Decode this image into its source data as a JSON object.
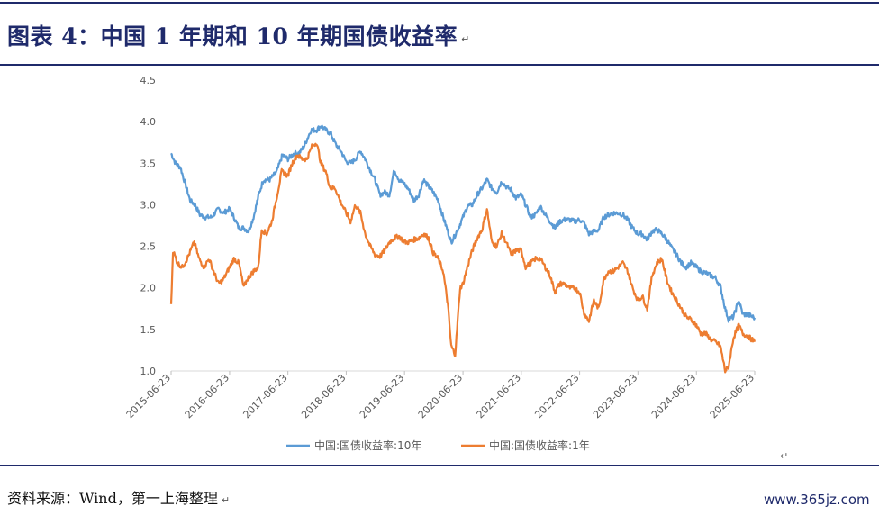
{
  "header": {
    "title": "图表 4：中国 1 年期和 10 年期国债收益率",
    "para_mark": "↵"
  },
  "footer": {
    "source": "资料来源：Wind，第一上海整理",
    "source_mark": "↵",
    "note_mark": "↵",
    "watermark": "www.365jz.com"
  },
  "colors": {
    "rule": "#1f2a6b",
    "series_10y": "#5b9bd5",
    "series_1y": "#ed7d31"
  },
  "chart_data": {
    "type": "line",
    "ylim": [
      1.0,
      4.5
    ],
    "yticks": [
      "1.0",
      "1.5",
      "2.0",
      "2.5",
      "3.0",
      "3.5",
      "4.0",
      "4.5"
    ],
    "xlim": [
      "2015-06-23",
      "2025-06-23"
    ],
    "xticks": [
      "2015-06-23",
      "2016-06-23",
      "2017-06-23",
      "2018-06-23",
      "2019-06-23",
      "2020-06-23",
      "2021-06-23",
      "2022-06-23",
      "2023-06-23",
      "2024-06-23",
      "2025-06-23"
    ],
    "legend_position": "bottom",
    "series": [
      {
        "name": "中国:国债收益率:10年",
        "color": "#5b9bd5",
        "points": [
          [
            "2015-06-23",
            3.62
          ],
          [
            "2015-07-20",
            3.5
          ],
          [
            "2015-08-20",
            3.45
          ],
          [
            "2015-09-20",
            3.25
          ],
          [
            "2015-10-20",
            3.05
          ],
          [
            "2015-11-20",
            3.0
          ],
          [
            "2015-12-20",
            2.88
          ],
          [
            "2016-01-20",
            2.85
          ],
          [
            "2016-03-01",
            2.85
          ],
          [
            "2016-04-15",
            2.95
          ],
          [
            "2016-05-15",
            2.9
          ],
          [
            "2016-06-23",
            2.95
          ],
          [
            "2016-07-20",
            2.85
          ],
          [
            "2016-08-20",
            2.72
          ],
          [
            "2016-09-20",
            2.72
          ],
          [
            "2016-10-20",
            2.68
          ],
          [
            "2016-11-20",
            2.85
          ],
          [
            "2016-12-20",
            3.1
          ],
          [
            "2017-01-20",
            3.3
          ],
          [
            "2017-03-01",
            3.3
          ],
          [
            "2017-04-15",
            3.4
          ],
          [
            "2017-05-20",
            3.6
          ],
          [
            "2017-06-23",
            3.55
          ],
          [
            "2017-08-01",
            3.62
          ],
          [
            "2017-09-01",
            3.62
          ],
          [
            "2017-10-01",
            3.7
          ],
          [
            "2017-11-15",
            3.9
          ],
          [
            "2017-12-20",
            3.9
          ],
          [
            "2018-01-15",
            3.95
          ],
          [
            "2018-02-15",
            3.9
          ],
          [
            "2018-03-20",
            3.85
          ],
          [
            "2018-04-20",
            3.72
          ],
          [
            "2018-05-20",
            3.65
          ],
          [
            "2018-06-23",
            3.52
          ],
          [
            "2018-07-20",
            3.5
          ],
          [
            "2018-08-20",
            3.55
          ],
          [
            "2018-09-20",
            3.65
          ],
          [
            "2018-10-20",
            3.55
          ],
          [
            "2018-11-20",
            3.42
          ],
          [
            "2018-12-20",
            3.3
          ],
          [
            "2019-01-20",
            3.12
          ],
          [
            "2019-02-20",
            3.15
          ],
          [
            "2019-03-20",
            3.12
          ],
          [
            "2019-04-20",
            3.42
          ],
          [
            "2019-05-20",
            3.3
          ],
          [
            "2019-06-23",
            3.25
          ],
          [
            "2019-07-20",
            3.18
          ],
          [
            "2019-08-20",
            3.05
          ],
          [
            "2019-09-20",
            3.12
          ],
          [
            "2019-10-20",
            3.3
          ],
          [
            "2019-11-20",
            3.22
          ],
          [
            "2019-12-20",
            3.15
          ],
          [
            "2020-01-20",
            3.05
          ],
          [
            "2020-02-20",
            2.85
          ],
          [
            "2020-03-20",
            2.68
          ],
          [
            "2020-04-10",
            2.55
          ],
          [
            "2020-05-01",
            2.62
          ],
          [
            "2020-06-01",
            2.75
          ],
          [
            "2020-06-23",
            2.85
          ],
          [
            "2020-07-20",
            2.98
          ],
          [
            "2020-08-20",
            3.0
          ],
          [
            "2020-09-20",
            3.12
          ],
          [
            "2020-10-20",
            3.2
          ],
          [
            "2020-11-20",
            3.3
          ],
          [
            "2020-12-20",
            3.2
          ],
          [
            "2021-01-20",
            3.15
          ],
          [
            "2021-02-20",
            3.28
          ],
          [
            "2021-03-20",
            3.22
          ],
          [
            "2021-04-20",
            3.18
          ],
          [
            "2021-05-20",
            3.08
          ],
          [
            "2021-06-23",
            3.12
          ],
          [
            "2021-07-20",
            3.0
          ],
          [
            "2021-08-20",
            2.85
          ],
          [
            "2021-09-20",
            2.88
          ],
          [
            "2021-10-20",
            2.98
          ],
          [
            "2021-11-20",
            2.88
          ],
          [
            "2021-12-20",
            2.8
          ],
          [
            "2022-01-20",
            2.72
          ],
          [
            "2022-02-20",
            2.8
          ],
          [
            "2022-03-20",
            2.82
          ],
          [
            "2022-04-20",
            2.82
          ],
          [
            "2022-05-20",
            2.8
          ],
          [
            "2022-06-23",
            2.82
          ],
          [
            "2022-07-20",
            2.78
          ],
          [
            "2022-08-20",
            2.65
          ],
          [
            "2022-09-20",
            2.68
          ],
          [
            "2022-10-20",
            2.7
          ],
          [
            "2022-11-20",
            2.85
          ],
          [
            "2022-12-20",
            2.88
          ],
          [
            "2023-01-20",
            2.9
          ],
          [
            "2023-02-20",
            2.9
          ],
          [
            "2023-03-20",
            2.88
          ],
          [
            "2023-04-20",
            2.82
          ],
          [
            "2023-05-20",
            2.72
          ],
          [
            "2023-06-23",
            2.65
          ],
          [
            "2023-07-20",
            2.65
          ],
          [
            "2023-08-20",
            2.58
          ],
          [
            "2023-09-20",
            2.68
          ],
          [
            "2023-10-20",
            2.7
          ],
          [
            "2023-11-20",
            2.65
          ],
          [
            "2023-12-20",
            2.58
          ],
          [
            "2024-01-20",
            2.48
          ],
          [
            "2024-02-20",
            2.4
          ],
          [
            "2024-03-20",
            2.3
          ],
          [
            "2024-04-20",
            2.25
          ],
          [
            "2024-05-20",
            2.3
          ],
          [
            "2024-06-23",
            2.25
          ],
          [
            "2024-07-20",
            2.2
          ],
          [
            "2024-08-20",
            2.18
          ],
          [
            "2024-09-20",
            2.15
          ],
          [
            "2024-10-20",
            2.12
          ],
          [
            "2024-11-20",
            2.02
          ],
          [
            "2024-12-20",
            1.75
          ],
          [
            "2025-01-10",
            1.62
          ],
          [
            "2025-02-10",
            1.65
          ],
          [
            "2025-03-15",
            1.85
          ],
          [
            "2025-04-10",
            1.68
          ],
          [
            "2025-05-10",
            1.68
          ],
          [
            "2025-06-23",
            1.64
          ]
        ]
      },
      {
        "name": "中国:国债收益率:1年",
        "color": "#ed7d31",
        "points": [
          [
            "2015-06-23",
            1.78
          ],
          [
            "2015-07-05",
            2.45
          ],
          [
            "2015-08-01",
            2.3
          ],
          [
            "2015-09-01",
            2.25
          ],
          [
            "2015-10-01",
            2.35
          ],
          [
            "2015-11-15",
            2.55
          ],
          [
            "2015-12-15",
            2.35
          ],
          [
            "2016-01-15",
            2.25
          ],
          [
            "2016-02-15",
            2.35
          ],
          [
            "2016-03-15",
            2.2
          ],
          [
            "2016-04-15",
            2.05
          ],
          [
            "2016-05-15",
            2.1
          ],
          [
            "2016-06-23",
            2.25
          ],
          [
            "2016-07-20",
            2.35
          ],
          [
            "2016-08-20",
            2.3
          ],
          [
            "2016-09-20",
            2.0
          ],
          [
            "2016-10-10",
            2.1
          ],
          [
            "2016-11-20",
            2.2
          ],
          [
            "2016-12-20",
            2.25
          ],
          [
            "2017-01-10",
            2.7
          ],
          [
            "2017-02-10",
            2.65
          ],
          [
            "2017-03-15",
            2.8
          ],
          [
            "2017-04-15",
            3.1
          ],
          [
            "2017-05-15",
            3.4
          ],
          [
            "2017-06-23",
            3.35
          ],
          [
            "2017-07-20",
            3.5
          ],
          [
            "2017-08-20",
            3.6
          ],
          [
            "2017-09-20",
            3.55
          ],
          [
            "2017-10-20",
            3.55
          ],
          [
            "2017-11-20",
            3.7
          ],
          [
            "2017-12-20",
            3.75
          ],
          [
            "2018-01-15",
            3.5
          ],
          [
            "2018-02-15",
            3.4
          ],
          [
            "2018-03-15",
            3.2
          ],
          [
            "2018-04-15",
            3.2
          ],
          [
            "2018-05-15",
            3.05
          ],
          [
            "2018-06-23",
            2.9
          ],
          [
            "2018-07-20",
            2.8
          ],
          [
            "2018-08-20",
            3.0
          ],
          [
            "2018-09-20",
            2.9
          ],
          [
            "2018-10-20",
            2.65
          ],
          [
            "2018-11-20",
            2.5
          ],
          [
            "2018-12-20",
            2.4
          ],
          [
            "2019-01-20",
            2.38
          ],
          [
            "2019-02-20",
            2.45
          ],
          [
            "2019-03-20",
            2.55
          ],
          [
            "2019-04-20",
            2.6
          ],
          [
            "2019-05-20",
            2.62
          ],
          [
            "2019-06-23",
            2.55
          ],
          [
            "2019-07-20",
            2.55
          ],
          [
            "2019-08-20",
            2.58
          ],
          [
            "2019-09-20",
            2.6
          ],
          [
            "2019-10-20",
            2.65
          ],
          [
            "2019-11-20",
            2.6
          ],
          [
            "2019-12-20",
            2.42
          ],
          [
            "2020-01-20",
            2.35
          ],
          [
            "2020-02-20",
            2.2
          ],
          [
            "2020-03-20",
            1.8
          ],
          [
            "2020-04-10",
            1.3
          ],
          [
            "2020-05-05",
            1.2
          ],
          [
            "2020-06-05",
            2.0
          ],
          [
            "2020-06-23",
            2.05
          ],
          [
            "2020-07-20",
            2.25
          ],
          [
            "2020-08-20",
            2.45
          ],
          [
            "2020-09-20",
            2.6
          ],
          [
            "2020-10-20",
            2.7
          ],
          [
            "2020-11-20",
            2.95
          ],
          [
            "2020-12-20",
            2.55
          ],
          [
            "2021-01-20",
            2.5
          ],
          [
            "2021-02-20",
            2.65
          ],
          [
            "2021-03-20",
            2.55
          ],
          [
            "2021-04-20",
            2.4
          ],
          [
            "2021-05-20",
            2.45
          ],
          [
            "2021-06-23",
            2.45
          ],
          [
            "2021-07-20",
            2.25
          ],
          [
            "2021-08-20",
            2.3
          ],
          [
            "2021-09-20",
            2.35
          ],
          [
            "2021-10-20",
            2.35
          ],
          [
            "2021-11-20",
            2.25
          ],
          [
            "2021-12-20",
            2.15
          ],
          [
            "2022-01-20",
            1.95
          ],
          [
            "2022-02-20",
            2.05
          ],
          [
            "2022-03-20",
            2.05
          ],
          [
            "2022-04-20",
            2.0
          ],
          [
            "2022-05-20",
            2.0
          ],
          [
            "2022-06-23",
            1.95
          ],
          [
            "2022-07-20",
            1.7
          ],
          [
            "2022-08-20",
            1.6
          ],
          [
            "2022-09-20",
            1.85
          ],
          [
            "2022-10-20",
            1.75
          ],
          [
            "2022-11-20",
            2.1
          ],
          [
            "2022-12-20",
            2.2
          ],
          [
            "2023-01-20",
            2.2
          ],
          [
            "2023-02-20",
            2.25
          ],
          [
            "2023-03-20",
            2.3
          ],
          [
            "2023-04-20",
            2.2
          ],
          [
            "2023-05-20",
            2.0
          ],
          [
            "2023-06-23",
            1.85
          ],
          [
            "2023-07-20",
            1.9
          ],
          [
            "2023-08-20",
            1.75
          ],
          [
            "2023-09-20",
            2.15
          ],
          [
            "2023-10-20",
            2.3
          ],
          [
            "2023-11-20",
            2.35
          ],
          [
            "2023-12-20",
            2.1
          ],
          [
            "2024-01-20",
            1.95
          ],
          [
            "2024-02-20",
            1.85
          ],
          [
            "2024-03-20",
            1.75
          ],
          [
            "2024-04-20",
            1.65
          ],
          [
            "2024-05-20",
            1.62
          ],
          [
            "2024-06-23",
            1.55
          ],
          [
            "2024-07-20",
            1.45
          ],
          [
            "2024-08-20",
            1.45
          ],
          [
            "2024-09-20",
            1.38
          ],
          [
            "2024-10-20",
            1.35
          ],
          [
            "2024-11-20",
            1.3
          ],
          [
            "2024-12-20",
            1.0
          ],
          [
            "2025-01-10",
            1.05
          ],
          [
            "2025-02-10",
            1.4
          ],
          [
            "2025-03-15",
            1.55
          ],
          [
            "2025-04-10",
            1.45
          ],
          [
            "2025-05-10",
            1.42
          ],
          [
            "2025-06-23",
            1.35
          ]
        ]
      }
    ]
  }
}
